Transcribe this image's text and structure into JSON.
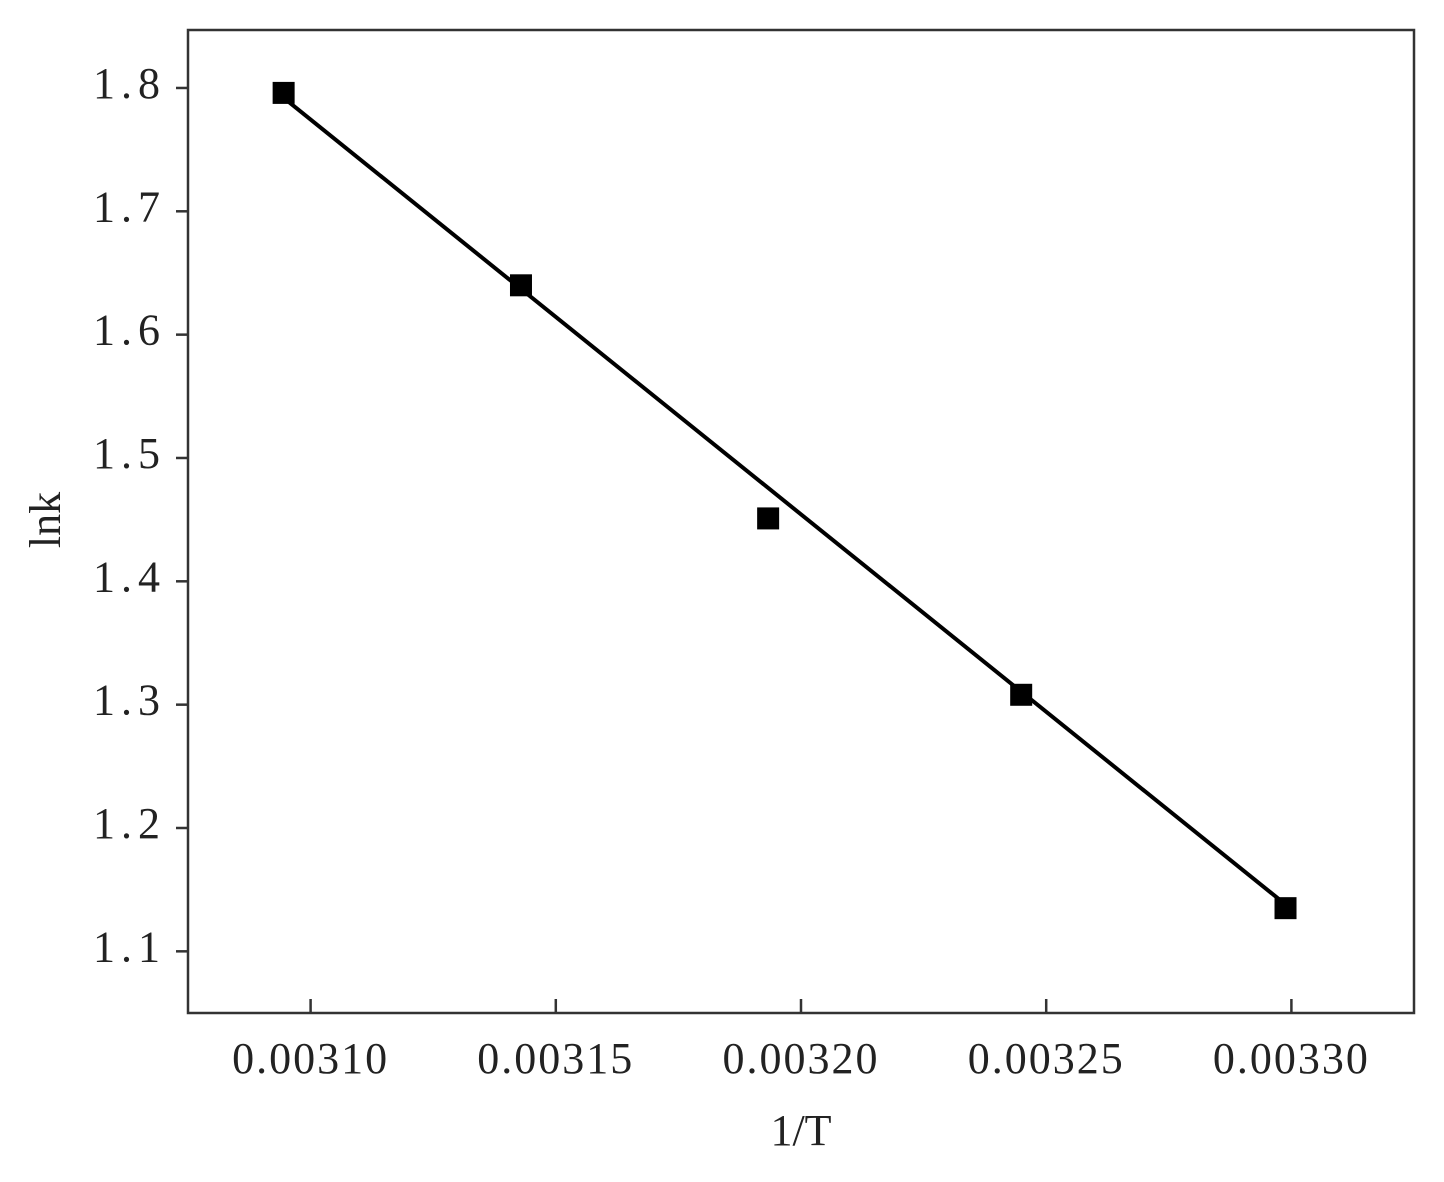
{
  "chart_data": {
    "type": "scatter",
    "x_label": "1/T",
    "y_label": "lnk",
    "series": [
      {
        "color": "#000000",
        "x": [
          0.0030945,
          0.0031429,
          0.0031933,
          0.0032449,
          0.0032988
        ],
        "values": [
          1.796,
          1.64,
          1.451,
          1.308,
          1.135
        ]
      }
    ],
    "fit_line": {
      "color": "#000000",
      "x": [
        0.0030945,
        0.0032988
      ],
      "values": [
        1.792,
        1.138
      ]
    },
    "xlim": [
      0.003075,
      0.003325
    ],
    "xticks": [
      {
        "value": 0.0031,
        "label": "0.00310"
      },
      {
        "value": 0.00315,
        "label": "0.00315"
      },
      {
        "value": 0.0032,
        "label": "0.00320"
      },
      {
        "value": 0.00325,
        "label": "0.00325"
      },
      {
        "value": 0.0033,
        "label": "0.00330"
      }
    ],
    "ylim": [
      1.05,
      1.847
    ],
    "yticks": [
      1.1,
      1.2,
      1.3,
      1.4,
      1.5,
      1.6,
      1.7,
      1.8
    ]
  }
}
